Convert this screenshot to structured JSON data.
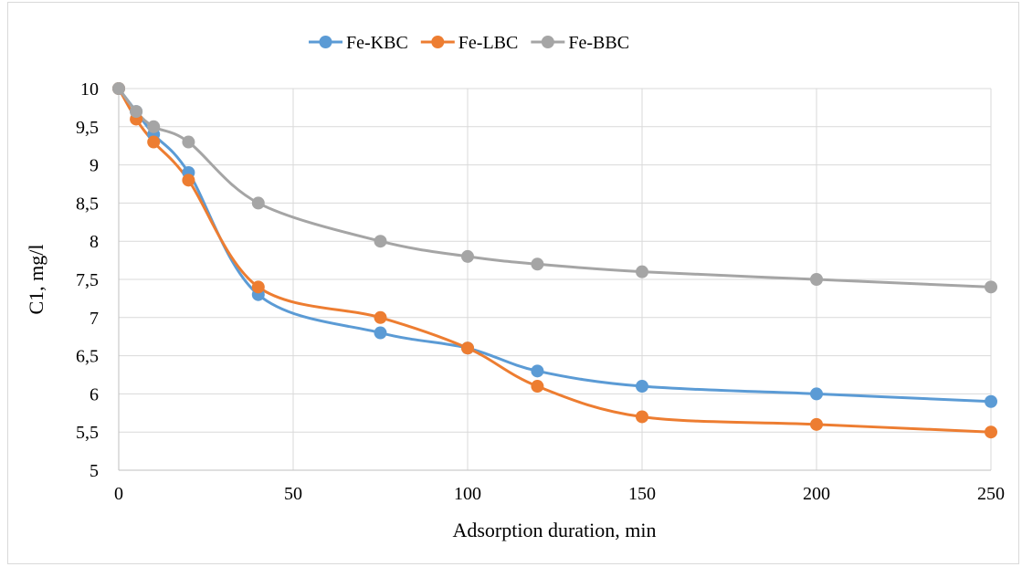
{
  "chart_data": {
    "type": "line",
    "smooth": true,
    "title": "",
    "xlabel": "Adsorption duration, min",
    "ylabel": "C1, mg/l",
    "xlim": [
      0,
      250
    ],
    "ylim": [
      5,
      10
    ],
    "x_ticks": [
      0,
      50,
      100,
      150,
      200,
      250
    ],
    "y_ticks": [
      5,
      5.5,
      6,
      6.5,
      7,
      7.5,
      8,
      8.5,
      9,
      9.5,
      10
    ],
    "x_tick_labels": [
      "0",
      "50",
      "100",
      "150",
      "200",
      "250"
    ],
    "y_tick_labels": [
      "5",
      "5,5",
      "6",
      "6,5",
      "7",
      "7,5",
      "8",
      "8,5",
      "9",
      "9,5",
      "10"
    ],
    "grid": true,
    "legend_position": "top",
    "series": [
      {
        "name": "Fe-KBC",
        "color": "#5b9bd5",
        "x": [
          0,
          5,
          10,
          20,
          40,
          75,
          100,
          120,
          150,
          200,
          250
        ],
        "y": [
          10,
          9.7,
          9.4,
          8.9,
          7.3,
          6.8,
          6.6,
          6.3,
          6.1,
          6.0,
          5.9
        ]
      },
      {
        "name": "Fe-LBC",
        "color": "#ed7d31",
        "x": [
          0,
          5,
          10,
          20,
          40,
          75,
          100,
          120,
          150,
          200,
          250
        ],
        "y": [
          10,
          9.6,
          9.3,
          8.8,
          7.4,
          7.0,
          6.6,
          6.1,
          5.7,
          5.6,
          5.5
        ]
      },
      {
        "name": "Fe-BBC",
        "color": "#a5a5a5",
        "x": [
          0,
          5,
          10,
          20,
          40,
          75,
          100,
          120,
          150,
          200,
          250
        ],
        "y": [
          10,
          9.7,
          9.5,
          9.3,
          8.5,
          8.0,
          7.8,
          7.7,
          7.6,
          7.5,
          7.4
        ]
      }
    ]
  }
}
